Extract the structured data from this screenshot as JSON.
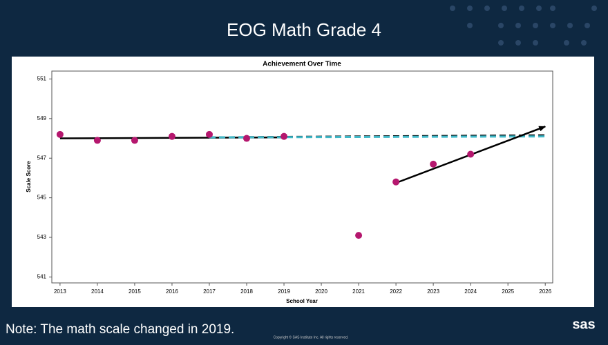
{
  "slide": {
    "title": "EOG Math Grade 4",
    "note": "Note: The math scale changed in 2019.",
    "copyright": "Copyright © SAS Institute Inc. All rights reserved.",
    "logo": "sas"
  },
  "chart_data": {
    "type": "scatter",
    "title": "Achievement Over Time",
    "x_label": "School Year",
    "y_label": "Scale Score",
    "xlim": [
      2012.78,
      2026.2
    ],
    "ylim": [
      540.7,
      551.4
    ],
    "xticks": [
      2013,
      2014,
      2015,
      2016,
      2017,
      2018,
      2019,
      2020,
      2021,
      2022,
      2023,
      2024,
      2025,
      2026
    ],
    "yticks": [
      541,
      543,
      545,
      547,
      549,
      551
    ],
    "series": [
      {
        "mode": "markers",
        "color": "#b5176e",
        "x": [
          2013,
          2014,
          2015,
          2016,
          2017,
          2018,
          2019,
          2021,
          2022,
          2023,
          2024
        ],
        "values": [
          548.2,
          547.9,
          547.9,
          548.1,
          548.2,
          548.0,
          548.1,
          543.1,
          545.8,
          546.7,
          547.2
        ]
      },
      {
        "mode": "line",
        "color": "#000000",
        "x": [
          2013,
          2019
        ],
        "values": [
          548.0,
          548.05
        ]
      },
      {
        "mode": "line",
        "dash": true,
        "color": "#000000",
        "x": [
          2017,
          2026
        ],
        "values": [
          548.05,
          548.15
        ]
      },
      {
        "mode": "line",
        "dash": true,
        "color": "#3fb8c8",
        "x": [
          2017,
          2026
        ],
        "values": [
          548.05,
          548.1
        ]
      },
      {
        "mode": "line",
        "arrow": true,
        "color": "#000000",
        "x": [
          2022,
          2026
        ],
        "values": [
          545.75,
          548.6
        ]
      }
    ]
  }
}
